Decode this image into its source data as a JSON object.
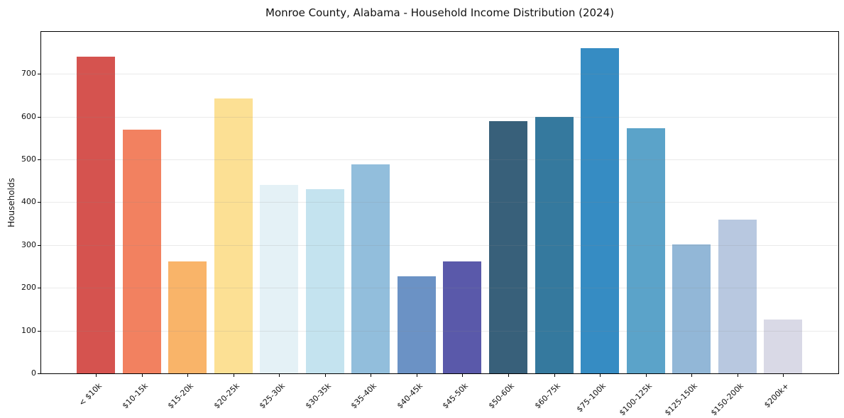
{
  "title": "Monroe County, Alabama - Household Income Distribution (2024)",
  "chart_data": {
    "type": "bar",
    "title": "Monroe County, Alabama - Household Income Distribution (2024)",
    "xlabel": "",
    "ylabel": "Households",
    "categories": [
      "< $10k",
      "$10-15k",
      "$15-20k",
      "$20-25k",
      "$25-30k",
      "$30-35k",
      "$35-40k",
      "$40-45k",
      "$45-50k",
      "$50-60k",
      "$60-75k",
      "$75-100k",
      "$100-125k",
      "$125-150k",
      "$150-200k",
      "$200k+"
    ],
    "values": [
      740,
      570,
      261,
      643,
      440,
      430,
      489,
      227,
      261,
      590,
      600,
      760,
      573,
      302,
      360,
      126
    ],
    "bar_colors": [
      "#d5534f",
      "#f28160",
      "#f9b469",
      "#fce094",
      "#e4f1f6",
      "#c4e3ef",
      "#92bedc",
      "#6b92c5",
      "#5a59aa",
      "#38607a",
      "#35799e",
      "#368cc3",
      "#5ba3c9",
      "#92b7d7",
      "#b8c8e0",
      "#d9d9e6"
    ],
    "ylim": [
      0,
      798
    ],
    "yticks": [
      0,
      100,
      200,
      300,
      400,
      500,
      600,
      700
    ],
    "xtick_rotation_deg": 45,
    "grid": "horizontal",
    "legend": "none",
    "background_color": "#ffffff",
    "axis_color": "#000000",
    "grid_color": "#e9e9e9",
    "text_color": "#111111"
  }
}
